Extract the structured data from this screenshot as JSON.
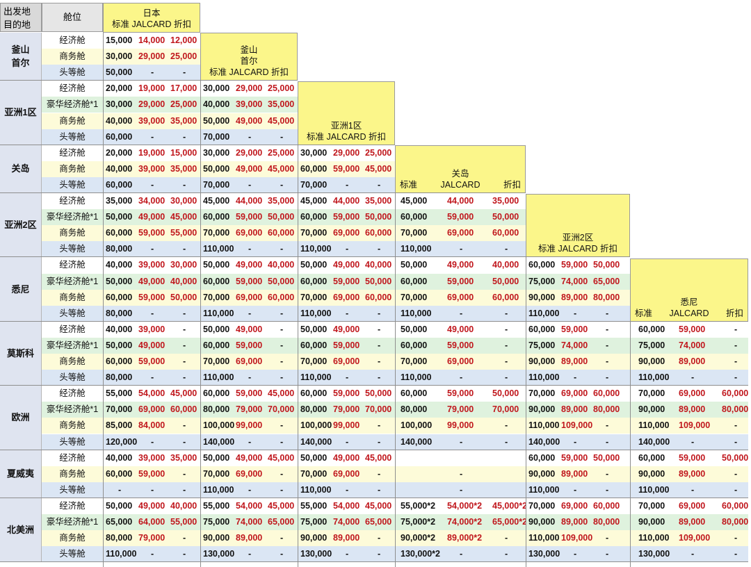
{
  "corner": {
    "line1": "出发地",
    "line2": "目的地",
    "cabin_header": "舱位"
  },
  "columns": [
    {
      "lines": [
        "日本",
        "标准 JALCARD 折扣"
      ]
    },
    {
      "lines": [
        "釜山",
        "首尔",
        "标准 JALCARD 折扣"
      ]
    },
    {
      "lines": [
        "亚洲1区",
        "标准 JALCARD 折扣"
      ]
    },
    {
      "lines": [
        "关岛"
      ],
      "sub": [
        "标准",
        "JALCARD",
        "折扣"
      ]
    },
    {
      "lines": [
        "亚洲2区",
        "标准 JALCARD 折扣"
      ]
    },
    {
      "lines": [
        "悉尼"
      ],
      "sub": [
        "标准",
        "JALCARD",
        "折扣"
      ]
    }
  ],
  "groups": [
    {
      "label": "釜山\n首尔",
      "rows": [
        {
          "cabin": "经济舱",
          "cells": [
            [
              "15,000",
              "14,000",
              "12,000"
            ]
          ]
        },
        {
          "cabin": "商务舱",
          "cells": [
            [
              "30,000",
              "29,000",
              "25,000"
            ]
          ]
        },
        {
          "cabin": "头等舱",
          "cells": [
            [
              "50,000",
              "-",
              "-"
            ]
          ]
        }
      ]
    },
    {
      "label": "亚洲1区",
      "rows": [
        {
          "cabin": "经济舱",
          "cells": [
            [
              "20,000",
              "19,000",
              "17,000"
            ],
            [
              "30,000",
              "29,000",
              "25,000"
            ]
          ]
        },
        {
          "cabin": "豪华经济舱*1",
          "cells": [
            [
              "30,000",
              "29,000",
              "25,000"
            ],
            [
              "40,000",
              "39,000",
              "35,000"
            ]
          ]
        },
        {
          "cabin": "商务舱",
          "cells": [
            [
              "40,000",
              "39,000",
              "35,000"
            ],
            [
              "50,000",
              "49,000",
              "45,000"
            ]
          ]
        },
        {
          "cabin": "头等舱",
          "cells": [
            [
              "60,000",
              "-",
              "-"
            ],
            [
              "70,000",
              "-",
              "-"
            ]
          ]
        }
      ]
    },
    {
      "label": "关岛",
      "rows": [
        {
          "cabin": "经济舱",
          "cells": [
            [
              "20,000",
              "19,000",
              "15,000"
            ],
            [
              "30,000",
              "29,000",
              "25,000"
            ],
            [
              "30,000",
              "29,000",
              "25,000"
            ]
          ]
        },
        {
          "cabin": "商务舱",
          "cells": [
            [
              "40,000",
              "39,000",
              "35,000"
            ],
            [
              "50,000",
              "49,000",
              "45,000"
            ],
            [
              "60,000",
              "59,000",
              "45,000"
            ]
          ]
        },
        {
          "cabin": "头等舱",
          "cells": [
            [
              "60,000",
              "-",
              "-"
            ],
            [
              "70,000",
              "-",
              "-"
            ],
            [
              "70,000",
              "-",
              "-"
            ]
          ]
        }
      ]
    },
    {
      "label": "亚洲2区",
      "rows": [
        {
          "cabin": "经济舱",
          "cells": [
            [
              "35,000",
              "34,000",
              "30,000"
            ],
            [
              "45,000",
              "44,000",
              "35,000"
            ],
            [
              "45,000",
              "44,000",
              "35,000"
            ],
            [
              "45,000",
              "44,000",
              "35,000"
            ]
          ]
        },
        {
          "cabin": "豪华经济舱*1",
          "cells": [
            [
              "50,000",
              "49,000",
              "45,000"
            ],
            [
              "60,000",
              "59,000",
              "50,000"
            ],
            [
              "60,000",
              "59,000",
              "50,000"
            ],
            [
              "60,000",
              "59,000",
              "50,000"
            ]
          ]
        },
        {
          "cabin": "商务舱",
          "cells": [
            [
              "60,000",
              "59,000",
              "55,000"
            ],
            [
              "70,000",
              "69,000",
              "60,000"
            ],
            [
              "70,000",
              "69,000",
              "60,000"
            ],
            [
              "70,000",
              "69,000",
              "60,000"
            ]
          ]
        },
        {
          "cabin": "头等舱",
          "cells": [
            [
              "80,000",
              "-",
              "-"
            ],
            [
              "110,000",
              "-",
              "-"
            ],
            [
              "110,000",
              "-",
              "-"
            ],
            [
              "110,000",
              "-",
              "-"
            ]
          ]
        }
      ]
    },
    {
      "label": "悉尼",
      "rows": [
        {
          "cabin": "经济舱",
          "cells": [
            [
              "40,000",
              "39,000",
              "30,000"
            ],
            [
              "50,000",
              "49,000",
              "40,000"
            ],
            [
              "50,000",
              "49,000",
              "40,000"
            ],
            [
              "50,000",
              "49,000",
              "40,000"
            ],
            [
              "60,000",
              "59,000",
              "50,000"
            ]
          ]
        },
        {
          "cabin": "豪华经济舱*1",
          "cells": [
            [
              "50,000",
              "49,000",
              "40,000"
            ],
            [
              "60,000",
              "59,000",
              "50,000"
            ],
            [
              "60,000",
              "59,000",
              "50,000"
            ],
            [
              "60,000",
              "59,000",
              "50,000"
            ],
            [
              "75,000",
              "74,000",
              "65,000"
            ]
          ]
        },
        {
          "cabin": "商务舱",
          "cells": [
            [
              "60,000",
              "59,000",
              "50,000"
            ],
            [
              "70,000",
              "69,000",
              "60,000"
            ],
            [
              "70,000",
              "69,000",
              "60,000"
            ],
            [
              "70,000",
              "69,000",
              "60,000"
            ],
            [
              "90,000",
              "89,000",
              "80,000"
            ]
          ]
        },
        {
          "cabin": "头等舱",
          "cells": [
            [
              "80,000",
              "-",
              "-"
            ],
            [
              "110,000",
              "-",
              "-"
            ],
            [
              "110,000",
              "-",
              "-"
            ],
            [
              "110,000",
              "-",
              "-"
            ],
            [
              "110,000",
              "-",
              "-"
            ]
          ]
        }
      ]
    },
    {
      "label": "莫斯科",
      "rows": [
        {
          "cabin": "经济舱",
          "cells": [
            [
              "40,000",
              "39,000",
              "-"
            ],
            [
              "50,000",
              "49,000",
              "-"
            ],
            [
              "50,000",
              "49,000",
              "-"
            ],
            [
              "50,000",
              "49,000",
              "-"
            ],
            [
              "60,000",
              "59,000",
              "-"
            ],
            [
              "60,000",
              "59,000",
              "-"
            ]
          ]
        },
        {
          "cabin": "豪华经济舱*1",
          "cells": [
            [
              "50,000",
              "49,000",
              "-"
            ],
            [
              "60,000",
              "59,000",
              "-"
            ],
            [
              "60,000",
              "59,000",
              "-"
            ],
            [
              "60,000",
              "59,000",
              "-"
            ],
            [
              "75,000",
              "74,000",
              "-"
            ],
            [
              "75,000",
              "74,000",
              "-"
            ]
          ]
        },
        {
          "cabin": "商务舱",
          "cells": [
            [
              "60,000",
              "59,000",
              "-"
            ],
            [
              "70,000",
              "69,000",
              "-"
            ],
            [
              "70,000",
              "69,000",
              "-"
            ],
            [
              "70,000",
              "69,000",
              "-"
            ],
            [
              "90,000",
              "89,000",
              "-"
            ],
            [
              "90,000",
              "89,000",
              "-"
            ]
          ]
        },
        {
          "cabin": "头等舱",
          "cells": [
            [
              "80,000",
              "-",
              "-"
            ],
            [
              "110,000",
              "-",
              "-"
            ],
            [
              "110,000",
              "-",
              "-"
            ],
            [
              "110,000",
              "-",
              "-"
            ],
            [
              "110,000",
              "-",
              "-"
            ],
            [
              "110,000",
              "-",
              "-"
            ]
          ]
        }
      ]
    },
    {
      "label": "欧洲",
      "rows": [
        {
          "cabin": "经济舱",
          "cells": [
            [
              "55,000",
              "54,000",
              "45,000"
            ],
            [
              "60,000",
              "59,000",
              "45,000"
            ],
            [
              "60,000",
              "59,000",
              "50,000"
            ],
            [
              "60,000",
              "59,000",
              "50,000"
            ],
            [
              "70,000",
              "69,000",
              "60,000"
            ],
            [
              "70,000",
              "69,000",
              "60,000"
            ]
          ]
        },
        {
          "cabin": "豪华经济舱*1",
          "cells": [
            [
              "70,000",
              "69,000",
              "60,000"
            ],
            [
              "80,000",
              "79,000",
              "70,000"
            ],
            [
              "80,000",
              "79,000",
              "70,000"
            ],
            [
              "80,000",
              "79,000",
              "70,000"
            ],
            [
              "90,000",
              "89,000",
              "80,000"
            ],
            [
              "90,000",
              "89,000",
              "80,000"
            ]
          ]
        },
        {
          "cabin": "商务舱",
          "cells": [
            [
              "85,000",
              "84,000",
              "-"
            ],
            [
              "100,000",
              "99,000",
              "-"
            ],
            [
              "100,000",
              "99,000",
              "-"
            ],
            [
              "100,000",
              "99,000",
              "-"
            ],
            [
              "110,000",
              "109,000",
              "-"
            ],
            [
              "110,000",
              "109,000",
              "-"
            ]
          ]
        },
        {
          "cabin": "头等舱",
          "cells": [
            [
              "120,000",
              "-",
              "-"
            ],
            [
              "140,000",
              "-",
              "-"
            ],
            [
              "140,000",
              "-",
              "-"
            ],
            [
              "140,000",
              "-",
              "-"
            ],
            [
              "140,000",
              "-",
              "-"
            ],
            [
              "140,000",
              "-",
              "-"
            ]
          ]
        }
      ]
    },
    {
      "label": "夏威夷",
      "rows": [
        {
          "cabin": "经济舱",
          "cells": [
            [
              "40,000",
              "39,000",
              "35,000"
            ],
            [
              "50,000",
              "49,000",
              "45,000"
            ],
            [
              "50,000",
              "49,000",
              "45,000"
            ],
            [
              "",
              "",
              ""
            ],
            [
              "60,000",
              "59,000",
              "50,000"
            ],
            [
              "60,000",
              "59,000",
              "50,000"
            ]
          ]
        },
        {
          "cabin": "商务舱",
          "cells": [
            [
              "60,000",
              "59,000",
              "-"
            ],
            [
              "70,000",
              "69,000",
              "-"
            ],
            [
              "70,000",
              "69,000",
              "-"
            ],
            [
              "",
              "-",
              ""
            ],
            [
              "90,000",
              "89,000",
              "-"
            ],
            [
              "90,000",
              "89,000",
              "-"
            ]
          ]
        },
        {
          "cabin": "头等舱",
          "cells": [
            [
              "-",
              "-",
              "-"
            ],
            [
              "110,000",
              "-",
              "-"
            ],
            [
              "110,000",
              "-",
              "-"
            ],
            [
              "",
              "-",
              ""
            ],
            [
              "110,000",
              "-",
              "-"
            ],
            [
              "110,000",
              "-",
              "-"
            ]
          ]
        }
      ]
    },
    {
      "label": "北美洲",
      "rows": [
        {
          "cabin": "经济舱",
          "cells": [
            [
              "50,000",
              "49,000",
              "40,000"
            ],
            [
              "55,000",
              "54,000",
              "45,000"
            ],
            [
              "55,000",
              "54,000",
              "45,000"
            ],
            [
              "55,000*2",
              "54,000*2",
              "45,000*2"
            ],
            [
              "70,000",
              "69,000",
              "60,000"
            ],
            [
              "70,000",
              "69,000",
              "60,000"
            ]
          ]
        },
        {
          "cabin": "豪华经济舱*1",
          "cells": [
            [
              "65,000",
              "64,000",
              "55,000"
            ],
            [
              "75,000",
              "74,000",
              "65,000"
            ],
            [
              "75,000",
              "74,000",
              "65,000"
            ],
            [
              "75,000*2",
              "74,000*2",
              "65,000*2"
            ],
            [
              "90,000",
              "89,000",
              "80,000"
            ],
            [
              "90,000",
              "89,000",
              "80,000"
            ]
          ]
        },
        {
          "cabin": "商务舱",
          "cells": [
            [
              "80,000",
              "79,000",
              "-"
            ],
            [
              "90,000",
              "89,000",
              "-"
            ],
            [
              "90,000",
              "89,000",
              "-"
            ],
            [
              "90,000*2",
              "89,000*2",
              "-"
            ],
            [
              "110,000",
              "109,000",
              "-"
            ],
            [
              "110,000",
              "109,000",
              "-"
            ]
          ]
        },
        {
          "cabin": "头等舱",
          "cells": [
            [
              "110,000",
              "-",
              "-"
            ],
            [
              "130,000",
              "-",
              "-"
            ],
            [
              "130,000",
              "-",
              "-"
            ],
            [
              "130,000*2",
              "-",
              "-"
            ],
            [
              "130,000",
              "-",
              "-"
            ],
            [
              "130,000",
              "-",
              "-"
            ]
          ]
        }
      ]
    }
  ]
}
